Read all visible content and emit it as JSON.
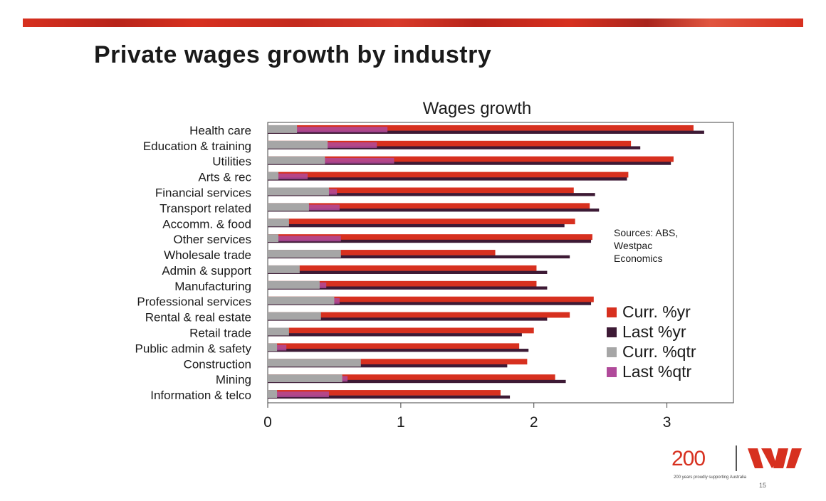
{
  "slide": {
    "title": "Private wages growth by industry",
    "page_number": "15"
  },
  "logo": {
    "text": "200",
    "tagline": "200 years proudly supporting Australia"
  },
  "colors": {
    "accent_red": "#d7301f",
    "curr_yr": "#d7301f",
    "last_yr": "#3d1a35",
    "curr_qtr": "#a6a6a6",
    "last_qtr": "#b04a9a"
  },
  "chart_data": {
    "type": "bar",
    "orientation": "horizontal",
    "title": "Wages growth",
    "categories": [
      "Health care",
      "Education & training",
      "Utilities",
      "Arts & rec",
      "Financial services",
      "Transport related",
      "Accomm. & food",
      "Other services",
      "Wholesale trade",
      "Admin & support",
      "Manufacturing",
      "Professional services",
      "Rental & real estate",
      "Retail trade",
      "Public admin & safety",
      "Construction",
      "Mining",
      "Information & telco"
    ],
    "series": [
      {
        "name": "Curr. %yr",
        "values": [
          3.2,
          2.73,
          3.05,
          2.71,
          2.3,
          2.42,
          2.31,
          2.44,
          1.71,
          2.02,
          2.02,
          2.45,
          2.27,
          2.0,
          1.89,
          1.95,
          2.16,
          1.75
        ]
      },
      {
        "name": "Last %yr",
        "values": [
          3.28,
          2.8,
          3.03,
          2.7,
          2.46,
          2.49,
          2.23,
          2.43,
          2.27,
          2.1,
          2.1,
          2.43,
          2.1,
          1.91,
          1.96,
          1.8,
          2.24,
          1.82
        ]
      },
      {
        "name": "Curr. %qtr",
        "values": [
          0.22,
          0.45,
          0.43,
          0.08,
          0.46,
          0.31,
          0.16,
          0.08,
          0.55,
          0.24,
          0.39,
          0.5,
          0.4,
          0.16,
          0.07,
          0.7,
          0.56,
          0.07
        ]
      },
      {
        "name": "Last %qtr",
        "values": [
          0.9,
          0.82,
          0.95,
          0.3,
          0.52,
          0.54,
          0.12,
          0.55,
          0.3,
          0.15,
          0.44,
          0.54,
          0.15,
          0.15,
          0.14,
          0.23,
          0.6,
          0.46
        ]
      }
    ],
    "xlim": [
      0,
      3.5
    ],
    "xticks": [
      0,
      1,
      2,
      3
    ],
    "legend_position": "right",
    "annotation": "Sources: ABS, Westpac Economics",
    "grid": false
  }
}
